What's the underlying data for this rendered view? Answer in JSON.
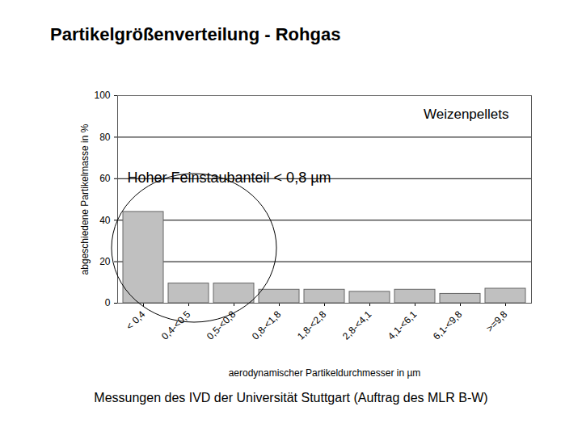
{
  "chart_data": {
    "type": "bar",
    "title": "Partikelgrößenverteilung - Rohgas",
    "caption": "Messungen des IVD der Universität Stuttgart (Auftrag des MLR B-W)",
    "annotations": [
      "Weizenpellets",
      "Hoher Feinstaubanteil < 0,8 µm"
    ],
    "x_label": "aerodynamischer Partikeldurchmesser in µm",
    "y_label": "abgeschiedene Partikelmasse in %",
    "categories": [
      "< 0,4",
      "0,4-<0,5",
      "0,5-<0,8",
      "0,8-<1,8",
      "1,8-<2,8",
      "2,8-<4,1",
      "4,1-<6,1",
      "6,1-<9,8",
      ">=9,8"
    ],
    "values": [
      44,
      9.5,
      9.5,
      6.5,
      6.5,
      5.5,
      6.5,
      4.5,
      7
    ],
    "color": "#c0c0c0",
    "ylim": [
      0,
      100
    ],
    "yticks": [
      0,
      20,
      40,
      60,
      80,
      100
    ],
    "grid": true
  }
}
